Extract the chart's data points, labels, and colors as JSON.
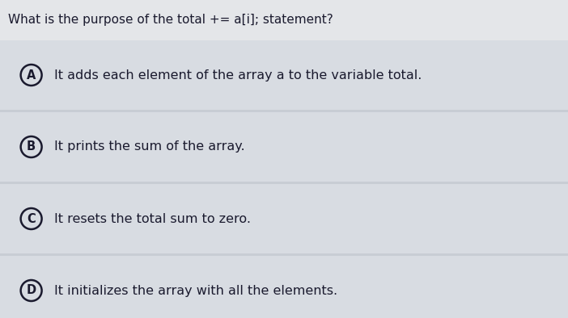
{
  "question": "What is the purpose of the total += a[i]; statement?",
  "options": [
    {
      "label": "A",
      "text": "It adds each element of the array a to the variable total."
    },
    {
      "label": "B",
      "text": "It prints the sum of the array."
    },
    {
      "label": "C",
      "text": "It resets the total sum to zero."
    },
    {
      "label": "D",
      "text": "It initializes the array with all the elements."
    }
  ],
  "bg_color": "#c8cdd4",
  "option_bg_color": "#d8dce2",
  "question_bg_color": "#e4e6e9",
  "text_color": "#1a1a2e",
  "circle_color": "#1a1a2e",
  "question_fontsize": 11.0,
  "option_fontsize": 11.5,
  "label_fontsize": 10.5,
  "fig_width": 7.02,
  "fig_height": 3.94,
  "dpi": 100
}
